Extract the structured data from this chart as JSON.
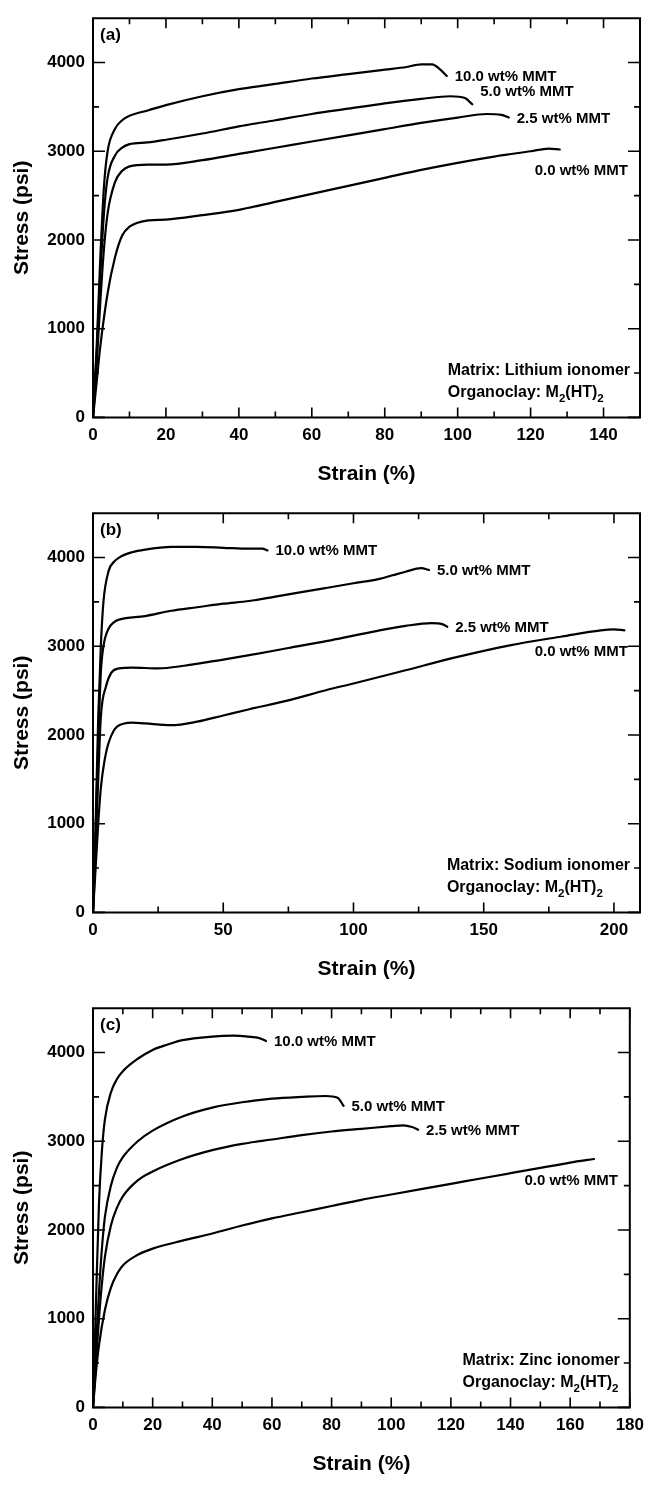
{
  "chart_data": [
    {
      "type": "line",
      "title": "(a)",
      "xlabel": "Strain (%)",
      "ylabel": "Stress (psi)",
      "annotations": [
        "Matrix: Lithium ionomer",
        "Organoclay: M$_{2}$(HT)$_{2}$"
      ],
      "grid": false,
      "marker": "none",
      "line_style": "solid",
      "xlim": [
        0,
        150
      ],
      "ylim": [
        0,
        4500
      ],
      "xticks": [
        0,
        {
          "value": 10,
          "label": null
        },
        20,
        {
          "value": 30,
          "label": null
        },
        40,
        {
          "value": 50,
          "label": null
        },
        60,
        {
          "value": 70,
          "label": null
        },
        80,
        {
          "value": 90,
          "label": null
        },
        100,
        {
          "value": 110,
          "label": null
        },
        120,
        {
          "value": 130,
          "label": null
        },
        140
      ],
      "yticks": [
        0,
        {
          "value": 500,
          "label": null
        },
        1000,
        {
          "value": 1500,
          "label": null
        },
        2000,
        {
          "value": 2500,
          "label": null
        },
        3000,
        {
          "value": 3500,
          "label": null
        },
        4000
      ],
      "series": [
        {
          "name": "10.0 wt% MMT",
          "color": "#000000",
          "x": [
            0,
            1,
            2,
            3,
            4,
            6,
            8,
            10,
            15,
            20,
            30,
            40,
            50,
            60,
            70,
            80,
            86,
            90,
            93,
            95,
            97
          ],
          "values": [
            0,
            800,
            1800,
            2600,
            3000,
            3250,
            3350,
            3400,
            3460,
            3520,
            3620,
            3700,
            3760,
            3820,
            3870,
            3920,
            3950,
            3980,
            3980,
            3930,
            3850
          ]
        },
        {
          "name": "5.0 wt% MMT",
          "color": "#000000",
          "x": [
            0,
            1,
            2,
            3,
            4,
            6,
            8,
            10,
            15,
            20,
            30,
            40,
            50,
            60,
            70,
            80,
            90,
            98,
            102,
            104
          ],
          "values": [
            0,
            700,
            1600,
            2300,
            2700,
            2950,
            3040,
            3080,
            3100,
            3130,
            3200,
            3280,
            3350,
            3420,
            3480,
            3540,
            3590,
            3620,
            3600,
            3530
          ]
        },
        {
          "name": "2.5 wt% MMT",
          "color": "#000000",
          "x": [
            0,
            1,
            2,
            3,
            4,
            6,
            8,
            10,
            15,
            20,
            30,
            40,
            50,
            60,
            70,
            80,
            90,
            100,
            108,
            112,
            114
          ],
          "values": [
            0,
            600,
            1300,
            1900,
            2300,
            2650,
            2780,
            2830,
            2850,
            2850,
            2900,
            2970,
            3040,
            3110,
            3180,
            3250,
            3320,
            3380,
            3420,
            3410,
            3380
          ]
        },
        {
          "name": "0.0 wt% MMT",
          "color": "#000000",
          "x": [
            0,
            1,
            2,
            4,
            6,
            8,
            10,
            15,
            20,
            30,
            40,
            50,
            60,
            70,
            80,
            90,
            100,
            110,
            120,
            125,
            128
          ],
          "values": [
            0,
            400,
            800,
            1400,
            1800,
            2050,
            2150,
            2220,
            2230,
            2280,
            2340,
            2430,
            2520,
            2610,
            2700,
            2790,
            2870,
            2940,
            3000,
            3030,
            3020
          ]
        }
      ]
    },
    {
      "type": "line",
      "title": "(b)",
      "xlabel": "Strain (%)",
      "ylabel": "Stress (psi)",
      "annotations": [
        "Matrix: Sodium ionomer",
        "Organoclay: M$_{2}$(HT)$_{2}$"
      ],
      "grid": false,
      "marker": "none",
      "line_style": "solid",
      "xlim": [
        0,
        210
      ],
      "ylim": [
        0,
        4500
      ],
      "xticks": [
        0,
        {
          "value": 25,
          "label": null
        },
        50,
        {
          "value": 75,
          "label": null
        },
        100,
        {
          "value": 125,
          "label": null
        },
        150,
        {
          "value": 175,
          "label": null
        },
        200
      ],
      "yticks": [
        0,
        {
          "value": 500,
          "label": null
        },
        1000,
        {
          "value": 1500,
          "label": null
        },
        2000,
        {
          "value": 2500,
          "label": null
        },
        3000,
        {
          "value": 3500,
          "label": null
        },
        4000
      ],
      "series": [
        {
          "name": "10.0 wt% MMT",
          "color": "#000000",
          "x": [
            0,
            1,
            2,
            3,
            4,
            6,
            8,
            10,
            15,
            20,
            30,
            40,
            50,
            60,
            65,
            67
          ],
          "values": [
            0,
            1000,
            2200,
            3000,
            3500,
            3850,
            3950,
            4000,
            4060,
            4090,
            4120,
            4120,
            4110,
            4100,
            4100,
            4080
          ]
        },
        {
          "name": "5.0 wt% MMT",
          "color": "#000000",
          "x": [
            0,
            1,
            2,
            3,
            4,
            6,
            8,
            10,
            20,
            30,
            40,
            50,
            60,
            70,
            80,
            90,
            100,
            110,
            115,
            120,
            126,
            129
          ],
          "values": [
            0,
            900,
            1900,
            2700,
            3000,
            3200,
            3270,
            3300,
            3340,
            3400,
            3440,
            3480,
            3510,
            3560,
            3610,
            3660,
            3710,
            3760,
            3800,
            3840,
            3880,
            3860
          ]
        },
        {
          "name": "2.5 wt% MMT",
          "color": "#000000",
          "x": [
            0,
            1,
            2,
            3,
            5,
            7,
            10,
            15,
            25,
            35,
            50,
            60,
            75,
            90,
            100,
            110,
            120,
            130,
            134,
            136
          ],
          "values": [
            0,
            700,
            1500,
            2200,
            2550,
            2700,
            2750,
            2760,
            2750,
            2780,
            2850,
            2900,
            2980,
            3060,
            3120,
            3180,
            3230,
            3260,
            3250,
            3220
          ]
        },
        {
          "name": "0.0 wt% MMT",
          "color": "#000000",
          "x": [
            0,
            1,
            2,
            3,
            5,
            8,
            12,
            15,
            20,
            30,
            40,
            50,
            60,
            75,
            90,
            100,
            120,
            140,
            160,
            180,
            195,
            200,
            204
          ],
          "values": [
            0,
            500,
            1000,
            1400,
            1800,
            2050,
            2130,
            2140,
            2130,
            2110,
            2150,
            2220,
            2290,
            2390,
            2510,
            2580,
            2730,
            2880,
            3010,
            3110,
            3180,
            3190,
            3180
          ]
        }
      ]
    },
    {
      "type": "line",
      "title": "(c)",
      "xlabel": "Strain (%)",
      "ylabel": "Stress (psi)",
      "annotations": [
        "Matrix: Zinc ionomer",
        "Organoclay: M$_{2}$(HT)$_{2}$"
      ],
      "grid": false,
      "marker": "none",
      "line_style": "solid",
      "xlim": [
        0,
        180
      ],
      "ylim": [
        0,
        4500
      ],
      "xticks": [
        0,
        {
          "value": 10,
          "label": null
        },
        20,
        {
          "value": 30,
          "label": null
        },
        40,
        {
          "value": 50,
          "label": null
        },
        60,
        {
          "value": 70,
          "label": null
        },
        80,
        {
          "value": 90,
          "label": null
        },
        100,
        {
          "value": 110,
          "label": null
        },
        120,
        {
          "value": 130,
          "label": null
        },
        140,
        {
          "value": 150,
          "label": null
        },
        160,
        {
          "value": 170,
          "label": null
        },
        180
      ],
      "yticks": [
        0,
        {
          "value": 500,
          "label": null
        },
        1000,
        {
          "value": 1500,
          "label": null
        },
        2000,
        {
          "value": 2500,
          "label": null
        },
        3000,
        {
          "value": 3500,
          "label": null
        },
        4000
      ],
      "series": [
        {
          "name": "10.0 wt% MMT",
          "color": "#000000",
          "x": [
            0,
            1,
            2,
            3,
            4,
            6,
            8,
            10,
            15,
            20,
            25,
            30,
            40,
            47,
            52,
            56,
            58
          ],
          "values": [
            0,
            1200,
            2300,
            2900,
            3250,
            3550,
            3700,
            3790,
            3930,
            4030,
            4090,
            4140,
            4180,
            4190,
            4180,
            4160,
            4130
          ]
        },
        {
          "name": "5.0 wt% MMT",
          "color": "#000000",
          "x": [
            0,
            1,
            2,
            3,
            4,
            6,
            8,
            10,
            15,
            20,
            30,
            40,
            50,
            60,
            70,
            78,
            82,
            84
          ],
          "values": [
            0,
            700,
            1300,
            1800,
            2150,
            2500,
            2700,
            2820,
            3000,
            3120,
            3280,
            3380,
            3440,
            3480,
            3500,
            3510,
            3490,
            3400
          ]
        },
        {
          "name": "2.5 wt% MMT",
          "color": "#000000",
          "x": [
            0,
            1,
            2,
            3,
            4,
            6,
            8,
            10,
            15,
            20,
            30,
            40,
            50,
            60,
            70,
            80,
            90,
            100,
            104,
            107,
            109
          ],
          "values": [
            0,
            500,
            1000,
            1400,
            1700,
            2050,
            2250,
            2380,
            2560,
            2660,
            2800,
            2900,
            2970,
            3020,
            3070,
            3110,
            3140,
            3170,
            3180,
            3160,
            3130
          ]
        },
        {
          "name": "0.0 wt% MMT",
          "color": "#000000",
          "x": [
            0,
            1,
            2,
            4,
            6,
            8,
            10,
            15,
            20,
            30,
            40,
            50,
            60,
            70,
            80,
            90,
            100,
            110,
            120,
            130,
            140,
            150,
            160,
            168
          ],
          "values": [
            0,
            400,
            700,
            1100,
            1350,
            1500,
            1600,
            1720,
            1790,
            1880,
            1960,
            2050,
            2130,
            2200,
            2270,
            2340,
            2400,
            2460,
            2520,
            2580,
            2640,
            2700,
            2760,
            2800
          ]
        }
      ]
    }
  ]
}
